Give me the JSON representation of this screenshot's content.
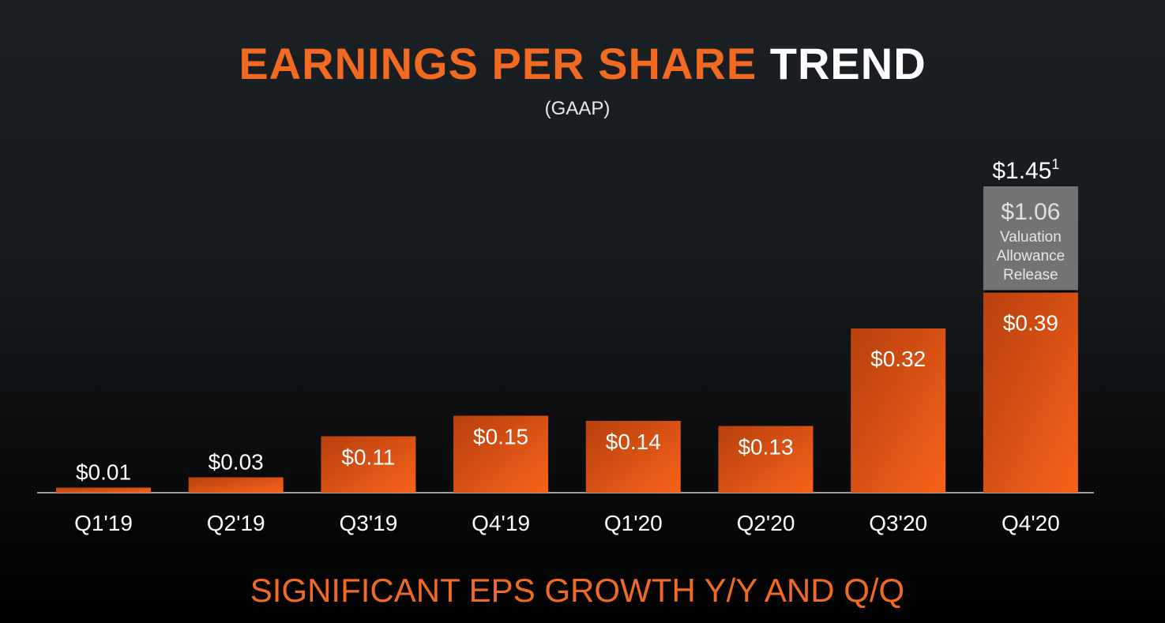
{
  "chart_data": {
    "type": "bar",
    "title_part1": "EARNINGS PER SHARE",
    "title_part2": "TREND",
    "subtitle": "(GAAP)",
    "categories": [
      "Q1'19",
      "Q2'19",
      "Q3'19",
      "Q4'19",
      "Q1'20",
      "Q2'20",
      "Q3'20",
      "Q4'20"
    ],
    "values": [
      0.01,
      0.03,
      0.11,
      0.15,
      0.14,
      0.13,
      0.32,
      0.39
    ],
    "labels": [
      "$0.01",
      "$0.03",
      "$0.11",
      "$0.15",
      "$0.14",
      "$0.13",
      "$0.32",
      "$0.39"
    ],
    "stacked_extra": {
      "category": "Q4'20",
      "value": 1.06,
      "label": "$1.06",
      "description": [
        "Valuation",
        "Allowance",
        "Release"
      ],
      "total_label": "$1.45",
      "footnote_mark": "1"
    },
    "colors": {
      "bar": "#f26a21",
      "bar_dark": "#b8400e",
      "extra": "#737373"
    },
    "footer": "SIGNIFICANT EPS GROWTH Y/Y AND Q/Q"
  }
}
